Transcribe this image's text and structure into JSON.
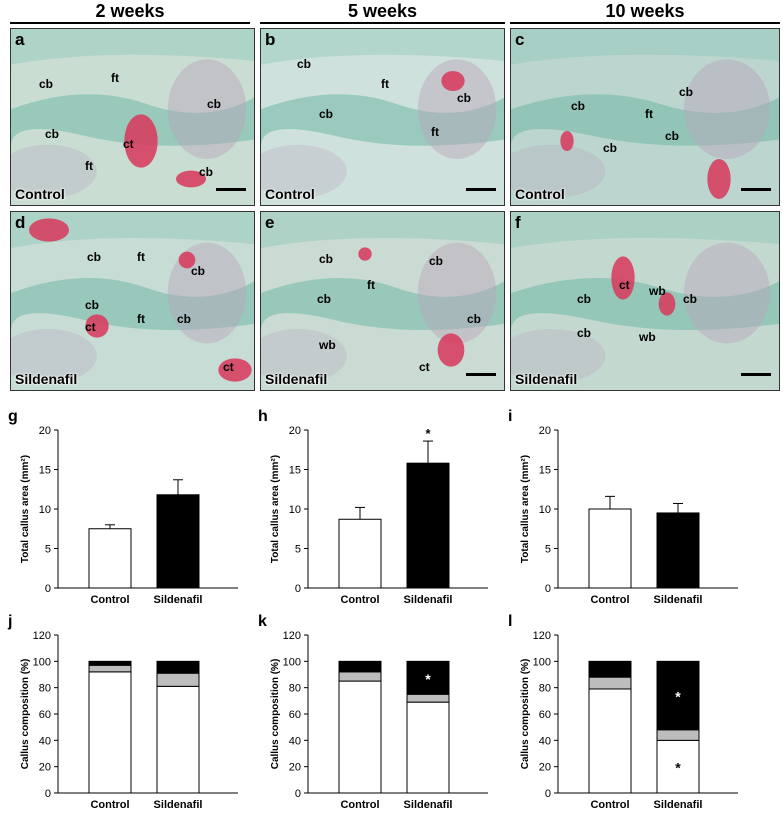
{
  "columns": [
    "2 weeks",
    "5 weeks",
    "10 weeks"
  ],
  "panels": [
    {
      "letter": "a",
      "group": "Control",
      "bg": "#c9ddd3",
      "labels": [
        "cb",
        "ft",
        "cb",
        "cb",
        "ft",
        "ct",
        "cb"
      ]
    },
    {
      "letter": "b",
      "group": "Control",
      "bg": "#cfe1dc",
      "labels": [
        "cb",
        "ft",
        "cb",
        "cb",
        "ft"
      ]
    },
    {
      "letter": "c",
      "group": "Control",
      "bg": "#bcd6cf",
      "labels": [
        "cb",
        "cb",
        "ft",
        "cb",
        "cb"
      ]
    },
    {
      "letter": "d",
      "group": "Sildenafil",
      "bg": "#c7dcd5",
      "labels": [
        "cb",
        "ft",
        "cb",
        "cb",
        "ct",
        "ft",
        "cb",
        "ct"
      ]
    },
    {
      "letter": "e",
      "group": "Sildenafil",
      "bg": "#cadbd3",
      "labels": [
        "cb",
        "cb",
        "cb",
        "ft",
        "cb",
        "wb",
        "ct"
      ]
    },
    {
      "letter": "f",
      "group": "Sildenafil",
      "bg": "#c3d9d0",
      "labels": [
        "ct",
        "wb",
        "cb",
        "cb",
        "cb",
        "wb"
      ]
    }
  ],
  "chart_data": [
    {
      "letter": "g",
      "type": "bar",
      "categories": [
        "Control",
        "Sildenafil"
      ],
      "values": [
        7.5,
        11.8
      ],
      "errors": [
        0.5,
        1.9
      ],
      "ylabel": "Total callus area (mm²)",
      "ylim": [
        0,
        20
      ],
      "yticks": [
        0,
        5,
        10,
        15,
        20
      ],
      "colors": [
        "#ffffff",
        "#000000"
      ],
      "sig": [
        false,
        false
      ]
    },
    {
      "letter": "h",
      "type": "bar",
      "categories": [
        "Control",
        "Sildenafil"
      ],
      "values": [
        8.7,
        15.8
      ],
      "errors": [
        1.5,
        2.8
      ],
      "ylabel": "Total callus area (mm²)",
      "ylim": [
        0,
        20
      ],
      "yticks": [
        0,
        5,
        10,
        15,
        20
      ],
      "colors": [
        "#ffffff",
        "#000000"
      ],
      "sig": [
        false,
        true
      ],
      "sig_label": "*"
    },
    {
      "letter": "i",
      "type": "bar",
      "categories": [
        "Control",
        "Sildenafil"
      ],
      "values": [
        10.0,
        9.5
      ],
      "errors": [
        1.6,
        1.2
      ],
      "ylabel": "Total callus area (mm²)",
      "ylim": [
        0,
        20
      ],
      "yticks": [
        0,
        5,
        10,
        15,
        20
      ],
      "colors": [
        "#ffffff",
        "#000000"
      ],
      "sig": [
        false,
        false
      ]
    },
    {
      "letter": "j",
      "type": "stacked_bar",
      "categories": [
        "Control",
        "Sildenafil"
      ],
      "series": [
        {
          "values": [
            92,
            81
          ],
          "color": "#ffffff"
        },
        {
          "values": [
            5,
            10
          ],
          "color": "#bdbdbd"
        },
        {
          "values": [
            3,
            9
          ],
          "color": "#000000"
        }
      ],
      "ylabel": "Callus composition (%)",
      "ylim": [
        0,
        120
      ],
      "yticks": [
        0,
        20,
        40,
        60,
        80,
        100,
        120
      ],
      "marks": []
    },
    {
      "letter": "k",
      "type": "stacked_bar",
      "categories": [
        "Control",
        "Sildenafil"
      ],
      "series": [
        {
          "values": [
            85,
            69
          ],
          "color": "#ffffff"
        },
        {
          "values": [
            7,
            6
          ],
          "color": "#bdbdbd"
        },
        {
          "values": [
            8,
            25
          ],
          "color": "#000000"
        }
      ],
      "ylabel": "Callus composition (%)",
      "ylim": [
        0,
        120
      ],
      "yticks": [
        0,
        20,
        40,
        60,
        80,
        100,
        120
      ],
      "marks": [
        {
          "cat": 1,
          "series": 2,
          "text": "*"
        }
      ]
    },
    {
      "letter": "l",
      "type": "stacked_bar",
      "categories": [
        "Control",
        "Sildenafil"
      ],
      "series": [
        {
          "values": [
            79,
            40
          ],
          "color": "#ffffff"
        },
        {
          "values": [
            9,
            8
          ],
          "color": "#bdbdbd"
        },
        {
          "values": [
            12,
            52
          ],
          "color": "#000000"
        }
      ],
      "ylabel": "Callus composition (%)",
      "ylim": [
        0,
        120
      ],
      "yticks": [
        0,
        20,
        40,
        60,
        80,
        100,
        120
      ],
      "marks": [
        {
          "cat": 1,
          "series": 2,
          "text": "*"
        },
        {
          "cat": 1,
          "series": 0,
          "text": "*"
        }
      ]
    }
  ]
}
